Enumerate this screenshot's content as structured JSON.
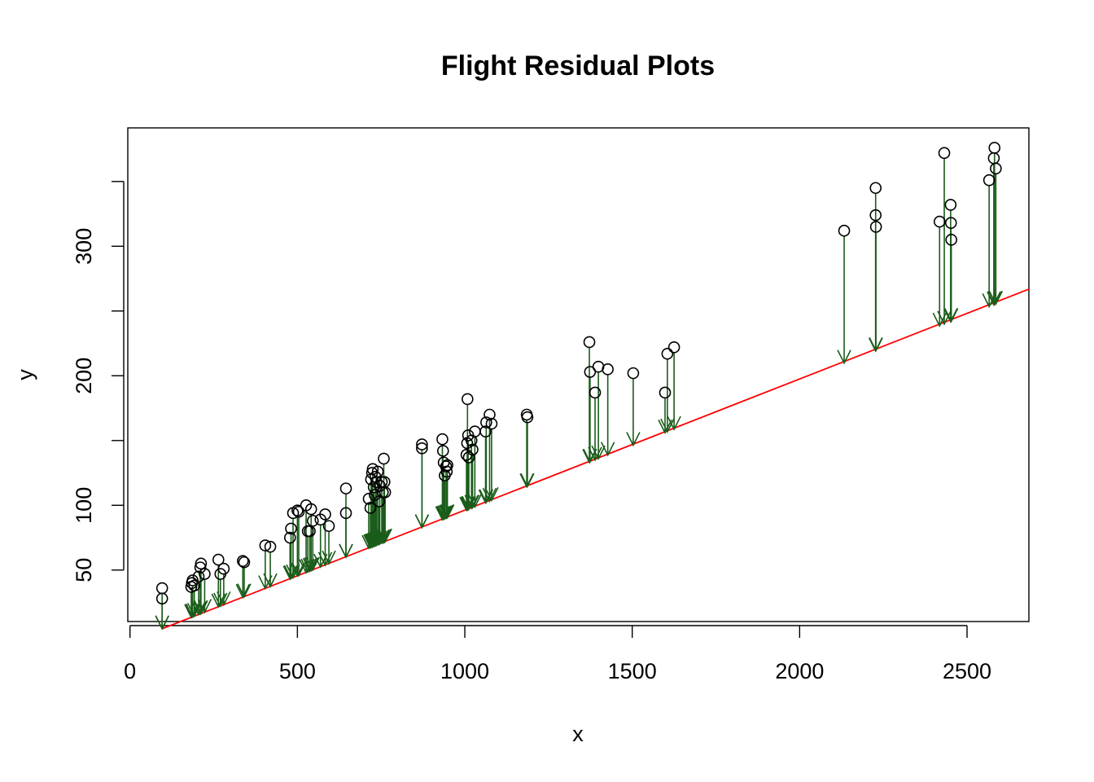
{
  "chart_data": {
    "type": "scatter",
    "title": "Flight Residual Plots",
    "xlabel": "x",
    "ylabel": "y",
    "xlim": [
      0,
      2700
    ],
    "ylim": [
      10,
      390
    ],
    "x_ticks": [
      0,
      500,
      1000,
      1500,
      2000,
      2500
    ],
    "y_ticks": [
      50,
      100,
      150,
      200,
      250,
      300,
      350
    ],
    "y_tick_labels": [
      "50",
      "100",
      "",
      "200",
      "",
      "300",
      ""
    ],
    "colors": {
      "points": "#000000",
      "residual_arrows": "#1a5c1a",
      "fit_line": "#ff0000"
    },
    "fit_line": {
      "intercept": -5,
      "slope": 0.1007,
      "x_range": [
        96,
        2700
      ]
    },
    "points": [
      {
        "x": 96,
        "y": 28
      },
      {
        "x": 96,
        "y": 36
      },
      {
        "x": 183,
        "y": 37
      },
      {
        "x": 185,
        "y": 40
      },
      {
        "x": 187,
        "y": 42
      },
      {
        "x": 192,
        "y": 38
      },
      {
        "x": 205,
        "y": 45
      },
      {
        "x": 210,
        "y": 52
      },
      {
        "x": 212,
        "y": 55
      },
      {
        "x": 223,
        "y": 47
      },
      {
        "x": 264,
        "y": 58
      },
      {
        "x": 270,
        "y": 47
      },
      {
        "x": 280,
        "y": 51
      },
      {
        "x": 337,
        "y": 57
      },
      {
        "x": 341,
        "y": 56
      },
      {
        "x": 404,
        "y": 69
      },
      {
        "x": 419,
        "y": 68
      },
      {
        "x": 478,
        "y": 75
      },
      {
        "x": 481,
        "y": 82
      },
      {
        "x": 487,
        "y": 94
      },
      {
        "x": 500,
        "y": 96
      },
      {
        "x": 504,
        "y": 95
      },
      {
        "x": 526,
        "y": 100
      },
      {
        "x": 531,
        "y": 80
      },
      {
        "x": 537,
        "y": 80
      },
      {
        "x": 541,
        "y": 97
      },
      {
        "x": 546,
        "y": 88
      },
      {
        "x": 569,
        "y": 89
      },
      {
        "x": 583,
        "y": 93
      },
      {
        "x": 594,
        "y": 84
      },
      {
        "x": 645,
        "y": 113
      },
      {
        "x": 645,
        "y": 94
      },
      {
        "x": 713,
        "y": 105
      },
      {
        "x": 718,
        "y": 98
      },
      {
        "x": 720,
        "y": 120
      },
      {
        "x": 723,
        "y": 125
      },
      {
        "x": 725,
        "y": 128
      },
      {
        "x": 728,
        "y": 114
      },
      {
        "x": 731,
        "y": 108
      },
      {
        "x": 733,
        "y": 122
      },
      {
        "x": 736,
        "y": 118
      },
      {
        "x": 740,
        "y": 126
      },
      {
        "x": 744,
        "y": 103
      },
      {
        "x": 746,
        "y": 115
      },
      {
        "x": 752,
        "y": 118
      },
      {
        "x": 755,
        "y": 110
      },
      {
        "x": 758,
        "y": 136
      },
      {
        "x": 760,
        "y": 118
      },
      {
        "x": 762,
        "y": 110
      },
      {
        "x": 872,
        "y": 144
      },
      {
        "x": 872,
        "y": 147
      },
      {
        "x": 933,
        "y": 151
      },
      {
        "x": 935,
        "y": 142
      },
      {
        "x": 937,
        "y": 133
      },
      {
        "x": 940,
        "y": 123
      },
      {
        "x": 944,
        "y": 130
      },
      {
        "x": 946,
        "y": 126
      },
      {
        "x": 948,
        "y": 131
      },
      {
        "x": 1005,
        "y": 139
      },
      {
        "x": 1007,
        "y": 148
      },
      {
        "x": 1008,
        "y": 182
      },
      {
        "x": 1010,
        "y": 154
      },
      {
        "x": 1012,
        "y": 137
      },
      {
        "x": 1020,
        "y": 150
      },
      {
        "x": 1023,
        "y": 143
      },
      {
        "x": 1030,
        "y": 157
      },
      {
        "x": 1062,
        "y": 157
      },
      {
        "x": 1064,
        "y": 164
      },
      {
        "x": 1074,
        "y": 170
      },
      {
        "x": 1080,
        "y": 163
      },
      {
        "x": 1185,
        "y": 170
      },
      {
        "x": 1187,
        "y": 168
      },
      {
        "x": 1372,
        "y": 226
      },
      {
        "x": 1374,
        "y": 203
      },
      {
        "x": 1389,
        "y": 187
      },
      {
        "x": 1399,
        "y": 207
      },
      {
        "x": 1427,
        "y": 205
      },
      {
        "x": 1503,
        "y": 202
      },
      {
        "x": 1598,
        "y": 187
      },
      {
        "x": 1605,
        "y": 217
      },
      {
        "x": 1625,
        "y": 222
      },
      {
        "x": 2133,
        "y": 312
      },
      {
        "x": 2227,
        "y": 345
      },
      {
        "x": 2227,
        "y": 324
      },
      {
        "x": 2228,
        "y": 315
      },
      {
        "x": 2418,
        "y": 319
      },
      {
        "x": 2432,
        "y": 372
      },
      {
        "x": 2451,
        "y": 332
      },
      {
        "x": 2452,
        "y": 318
      },
      {
        "x": 2453,
        "y": 305
      },
      {
        "x": 2566,
        "y": 351
      },
      {
        "x": 2580,
        "y": 368
      },
      {
        "x": 2582,
        "y": 376
      },
      {
        "x": 2586,
        "y": 360
      }
    ]
  }
}
